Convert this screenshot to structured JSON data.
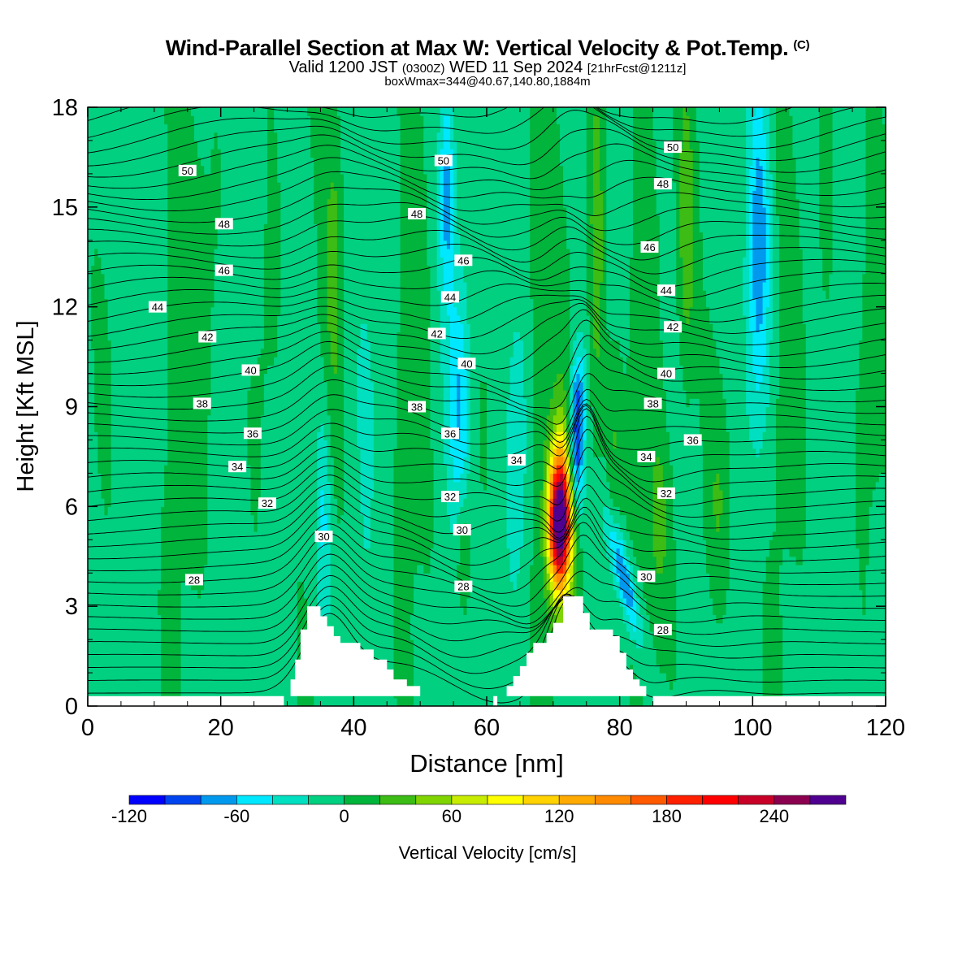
{
  "title": {
    "main": "Wind-Parallel Section at Max W: Vertical Velocity & Pot.Temp.",
    "copyright": "(C)",
    "valid_prefix": "Valid 1200 JST",
    "valid_zulu": "(0300Z)",
    "valid_date": "WED 11 Sep 2024",
    "forecast": "[21hrFcst@1211z]",
    "boxinfo": "boxWmax=344@40.67,140.80,1884m"
  },
  "chart_data": {
    "type": "heatmap",
    "xlabel": "Distance [nm]",
    "ylabel": "Height [Kft MSL]",
    "xlim": [
      0,
      120
    ],
    "ylim": [
      0,
      18
    ],
    "xticks": [
      "0",
      "20",
      "40",
      "60",
      "80",
      "100",
      "120"
    ],
    "yticks": [
      "0",
      "3",
      "6",
      "9",
      "12",
      "15",
      "18"
    ],
    "colorbar": {
      "label": "Vertical Velocity [cm/s]",
      "tick_labels": [
        "-120",
        "-60",
        "0",
        "60",
        "120",
        "180",
        "240"
      ],
      "bounds": [
        -120,
        280
      ],
      "step": 20,
      "colors": [
        "#0000ff",
        "#0044f0",
        "#0099ee",
        "#00e8ff",
        "#00e0c0",
        "#00d080",
        "#00b43c",
        "#3cbc14",
        "#80d400",
        "#c8ec00",
        "#ffff00",
        "#ffd200",
        "#ffaa00",
        "#ff8a00",
        "#ff5a00",
        "#ff2000",
        "#ff0000",
        "#c80028",
        "#8c0050",
        "#500090"
      ]
    },
    "theta_contour_labels": [
      {
        "text": "50",
        "x": 15,
        "y": 16.1
      },
      {
        "text": "48",
        "x": 20.5,
        "y": 14.5
      },
      {
        "text": "46",
        "x": 20.5,
        "y": 13.1
      },
      {
        "text": "44",
        "x": 10.5,
        "y": 12.0
      },
      {
        "text": "42",
        "x": 18,
        "y": 11.1
      },
      {
        "text": "40",
        "x": 24.5,
        "y": 10.1
      },
      {
        "text": "38",
        "x": 17.2,
        "y": 9.1
      },
      {
        "text": "36",
        "x": 24.8,
        "y": 8.2
      },
      {
        "text": "34",
        "x": 22.5,
        "y": 7.2
      },
      {
        "text": "32",
        "x": 27,
        "y": 6.1
      },
      {
        "text": "28",
        "x": 16,
        "y": 3.8
      },
      {
        "text": "30",
        "x": 35.5,
        "y": 5.1
      },
      {
        "text": "28",
        "x": 56.5,
        "y": 3.6
      },
      {
        "text": "30",
        "x": 56.3,
        "y": 5.3
      },
      {
        "text": "32",
        "x": 54.5,
        "y": 6.3
      },
      {
        "text": "34",
        "x": 64.5,
        "y": 7.4
      },
      {
        "text": "36",
        "x": 54.5,
        "y": 8.2
      },
      {
        "text": "38",
        "x": 49.5,
        "y": 9.0
      },
      {
        "text": "40",
        "x": 57,
        "y": 10.3
      },
      {
        "text": "42",
        "x": 52.5,
        "y": 11.2
      },
      {
        "text": "44",
        "x": 54.5,
        "y": 12.3
      },
      {
        "text": "46",
        "x": 56.5,
        "y": 13.4
      },
      {
        "text": "48",
        "x": 49.5,
        "y": 14.8
      },
      {
        "text": "50",
        "x": 53.5,
        "y": 16.4
      },
      {
        "text": "50",
        "x": 88,
        "y": 16.8
      },
      {
        "text": "48",
        "x": 86.5,
        "y": 15.7
      },
      {
        "text": "46",
        "x": 84.5,
        "y": 13.8
      },
      {
        "text": "44",
        "x": 87,
        "y": 12.5
      },
      {
        "text": "42",
        "x": 88,
        "y": 11.4
      },
      {
        "text": "40",
        "x": 87,
        "y": 10.0
      },
      {
        "text": "38",
        "x": 85,
        "y": 9.1
      },
      {
        "text": "36",
        "x": 91,
        "y": 8.0
      },
      {
        "text": "34",
        "x": 84,
        "y": 7.5
      },
      {
        "text": "32",
        "x": 87,
        "y": 6.4
      },
      {
        "text": "30",
        "x": 84,
        "y": 3.9
      },
      {
        "text": "28",
        "x": 86.5,
        "y": 2.3
      }
    ]
  }
}
